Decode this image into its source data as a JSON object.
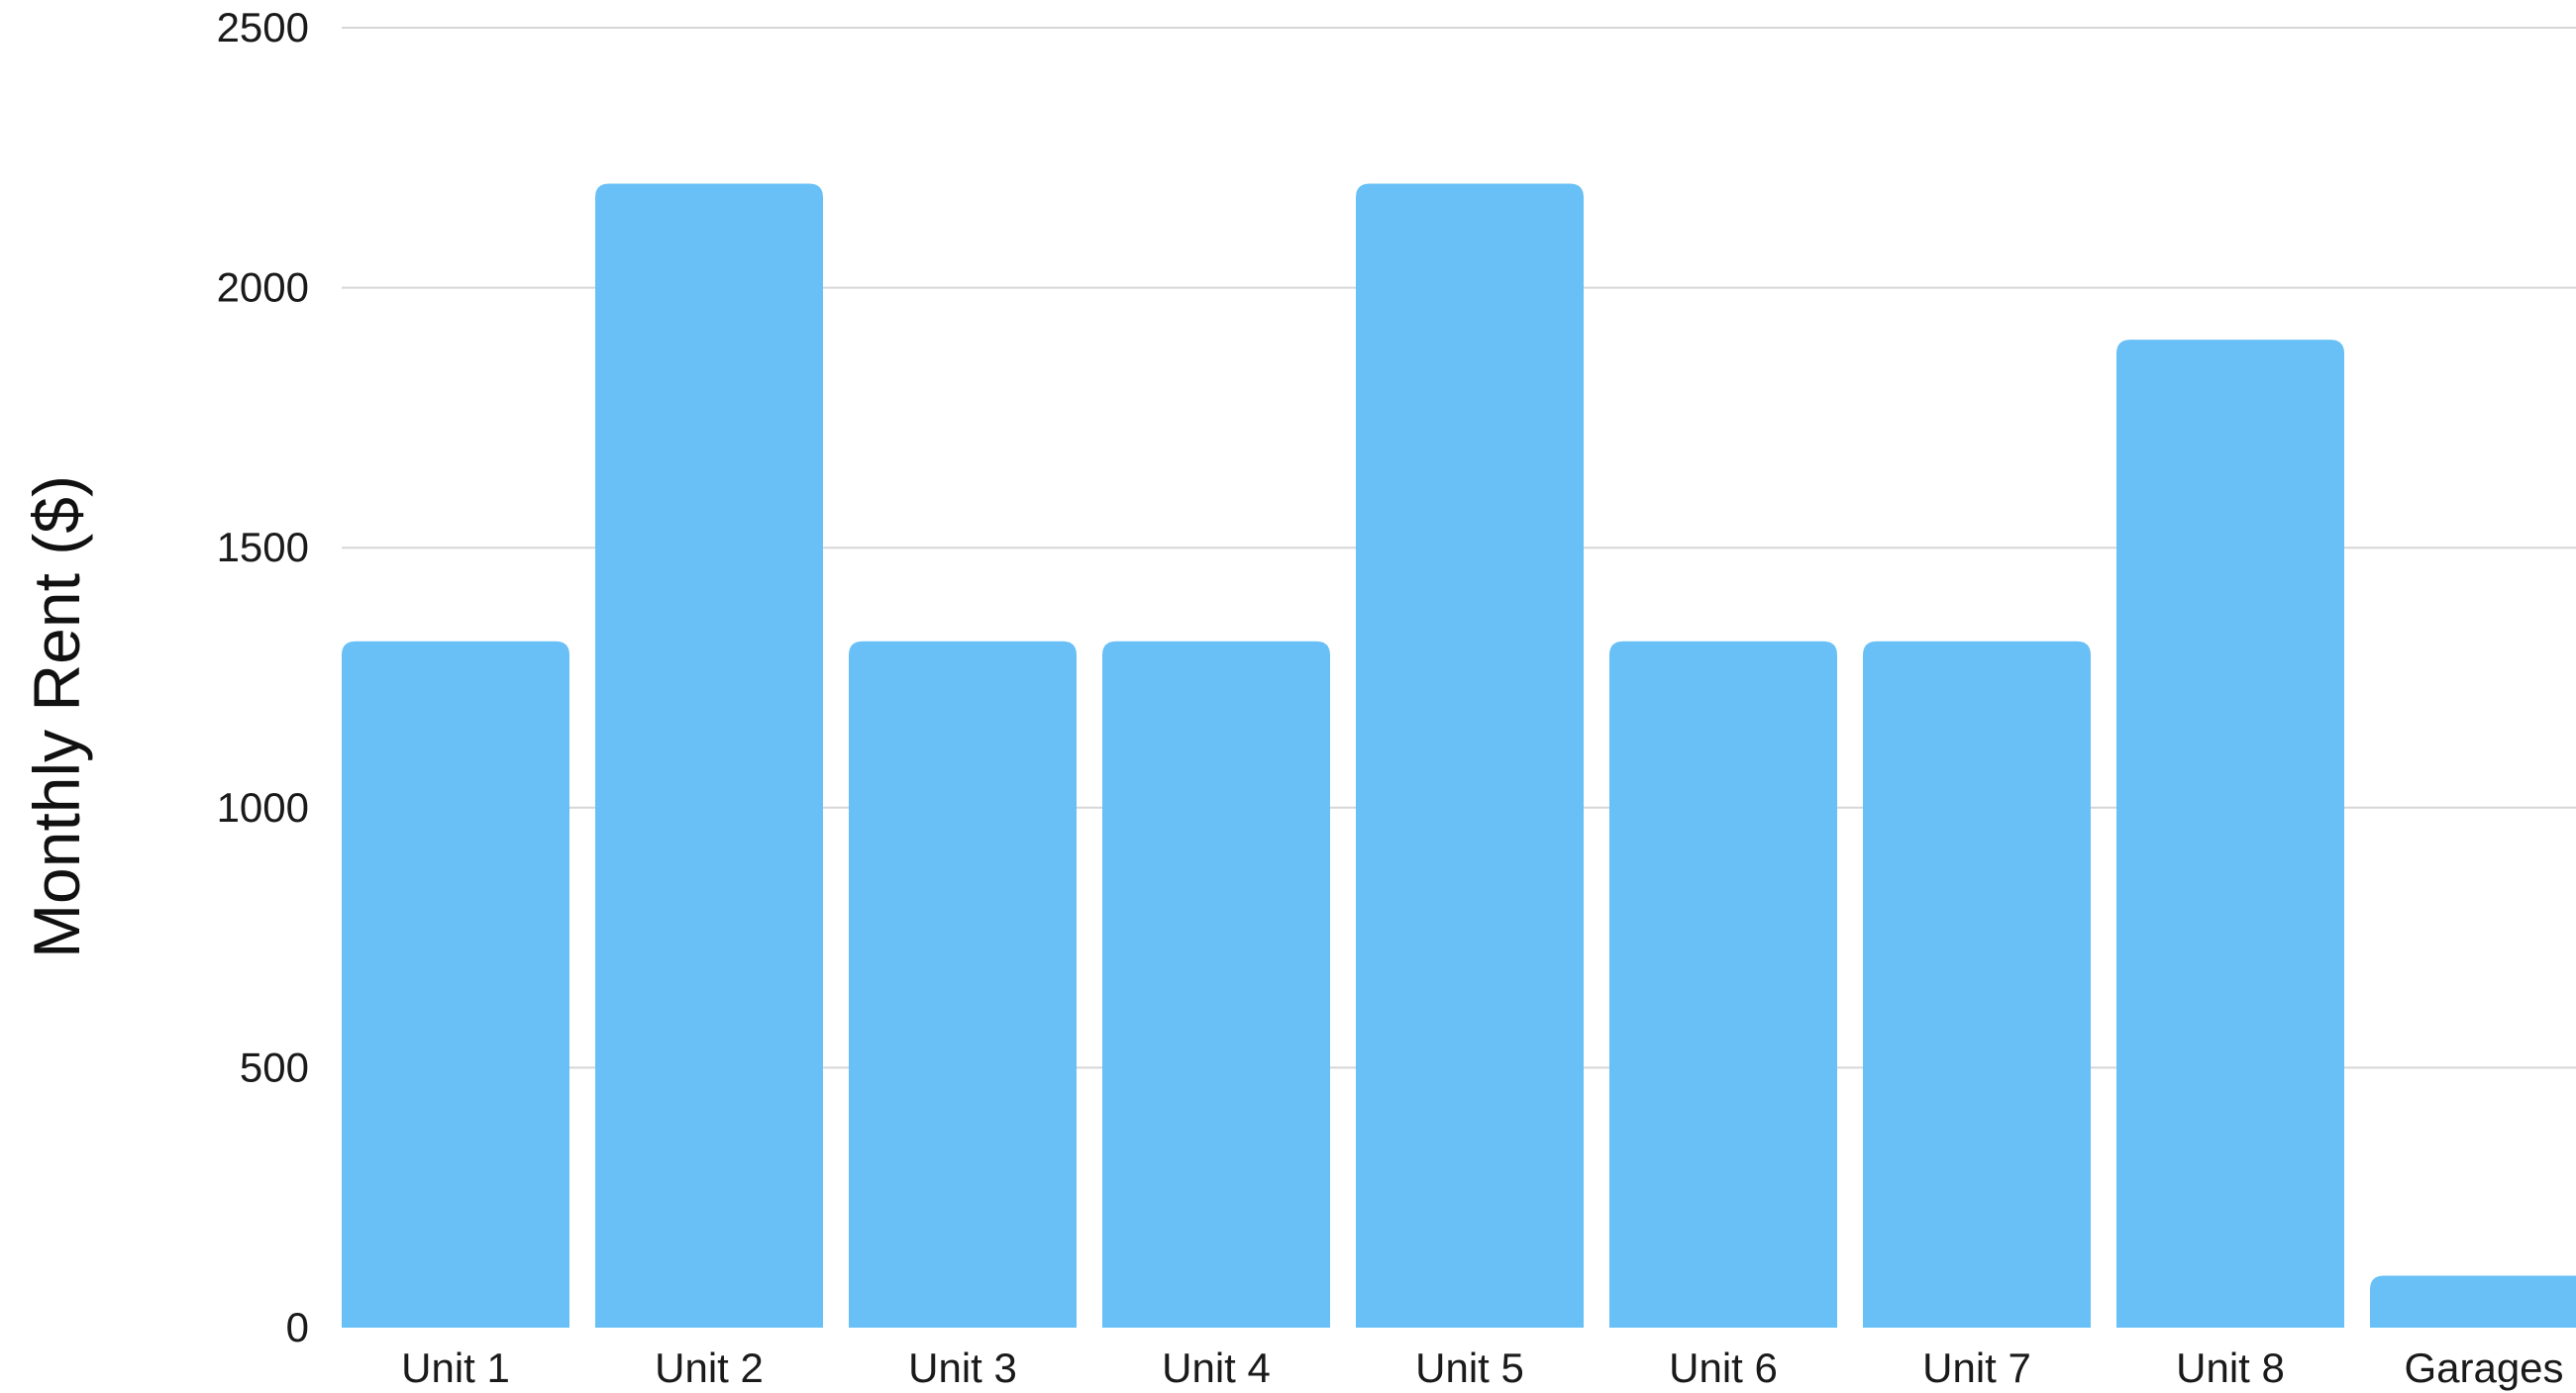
{
  "chart_data": {
    "type": "bar",
    "ylabel": "Monthly Rent ($)",
    "xlabel": "",
    "categories": [
      "Unit 1",
      "Unit 2",
      "Unit 3",
      "Unit 4",
      "Unit 5",
      "Unit 6",
      "Unit 7",
      "Unit 8",
      "Garages"
    ],
    "values": [
      1320,
      2200,
      1320,
      1320,
      2200,
      1320,
      1320,
      1900,
      100
    ],
    "ylim": [
      0,
      2500
    ],
    "yticks": [
      "0",
      "500",
      "1000",
      "1500",
      "2000",
      "2500"
    ],
    "grid": true,
    "bar_color": "#68C0F6"
  }
}
